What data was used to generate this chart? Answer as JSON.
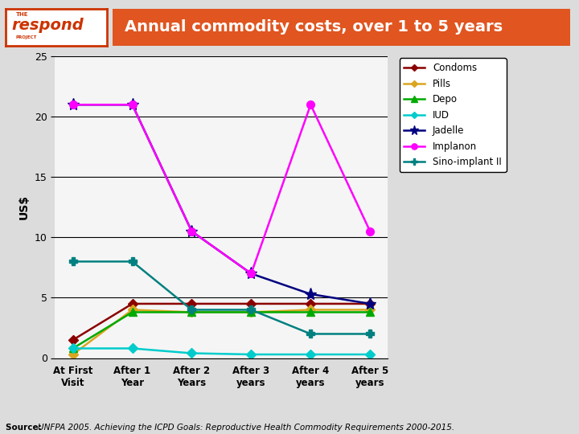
{
  "title": "Annual commodity costs, over 1 to 5 years",
  "title_bg_color": "#E05520",
  "title_text_color": "#FFFFFF",
  "ylabel": "US$",
  "page_bg_color": "#DCDCDC",
  "chart_bg": "#F5F5F5",
  "x_labels": [
    "At First\nVisit",
    "After 1\nYear",
    "After 2\nYears",
    "After 3\nyears",
    "After 4\nyears",
    "After 5\nyears"
  ],
  "ylim": [
    0,
    25
  ],
  "yticks": [
    0,
    5,
    10,
    15,
    20,
    25
  ],
  "series": [
    {
      "label": "Condoms",
      "color": "#8B0000",
      "marker": "D",
      "markersize": 6,
      "linewidth": 1.8,
      "values": [
        1.5,
        4.5,
        4.5,
        4.5,
        4.5,
        4.5
      ]
    },
    {
      "label": "Pills",
      "color": "#DAA520",
      "marker": "D",
      "markersize": 6,
      "linewidth": 1.8,
      "values": [
        0.3,
        4.0,
        3.8,
        3.8,
        4.0,
        4.0
      ]
    },
    {
      "label": "Depo",
      "color": "#00AA00",
      "marker": "^",
      "markersize": 7,
      "linewidth": 1.8,
      "values": [
        0.8,
        3.8,
        3.8,
        3.8,
        3.8,
        3.8
      ]
    },
    {
      "label": "IUD",
      "color": "#00CCCC",
      "marker": "D",
      "markersize": 6,
      "linewidth": 1.8,
      "values": [
        0.8,
        0.8,
        0.4,
        0.3,
        0.3,
        0.3
      ]
    },
    {
      "label": "Jadelle",
      "color": "#000080",
      "marker": "*",
      "markersize": 11,
      "linewidth": 1.8,
      "values": [
        21.0,
        21.0,
        10.5,
        7.0,
        5.3,
        4.5
      ]
    },
    {
      "label": "Implanon",
      "color": "#FF00FF",
      "marker": "o",
      "markersize": 7,
      "linewidth": 1.8,
      "values": [
        21.0,
        21.0,
        10.5,
        7.0,
        21.0,
        10.5
      ]
    },
    {
      "label": "Sino-implant II",
      "color": "#008080",
      "marker": "P",
      "markersize": 7,
      "linewidth": 1.8,
      "values": [
        8.0,
        8.0,
        4.0,
        4.0,
        2.0,
        2.0
      ]
    }
  ],
  "source_text": "Source: UNFPA 2005. Achieving the ICPD Goals: Reproductive Health Commodity Requirements 2000-2015.",
  "source_prefix": "Source: ",
  "source_bold": "Source:",
  "logo_border_color": "#CC3300"
}
